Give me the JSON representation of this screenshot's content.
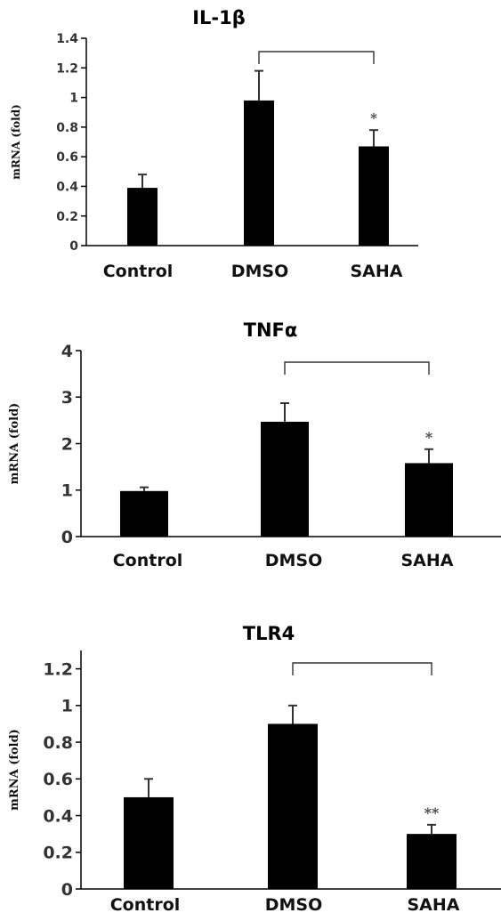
{
  "chart_data": [
    {
      "type": "bar",
      "title": "IL-1β",
      "ylabel": "mRNA  (fold)",
      "xlabel": "",
      "categories": [
        "Control",
        "DMSO",
        "SAHA"
      ],
      "values": [
        0.39,
        0.98,
        0.67
      ],
      "errors": [
        0.09,
        0.2,
        0.11
      ],
      "ylim": [
        0,
        1.4
      ],
      "yticks": [
        "0",
        "0.2",
        "0.4",
        "0.6",
        "0.8",
        "1",
        "1.2",
        "1.4"
      ],
      "comparison": {
        "from": "DMSO",
        "to": "SAHA",
        "significance": "*"
      },
      "grid": false,
      "colors": {
        "bar": "#000000"
      }
    },
    {
      "type": "bar",
      "title": "TNFα",
      "ylabel": "mRNA  (fold)",
      "xlabel": "",
      "categories": [
        "Control",
        "DMSO",
        "SAHA"
      ],
      "values": [
        0.98,
        2.47,
        1.58
      ],
      "errors": [
        0.08,
        0.4,
        0.3
      ],
      "ylim": [
        0,
        4
      ],
      "yticks": [
        "0",
        "1",
        "2",
        "3",
        "4"
      ],
      "comparison": {
        "from": "DMSO",
        "to": "SAHA",
        "significance": "*"
      },
      "grid": false,
      "colors": {
        "bar": "#000000"
      }
    },
    {
      "type": "bar",
      "title": "TLR4",
      "ylabel": "mRNA  (fold)",
      "xlabel": "",
      "categories": [
        "Control",
        "DMSO",
        "SAHA"
      ],
      "values": [
        0.5,
        0.9,
        0.3
      ],
      "errors": [
        0.1,
        0.1,
        0.05
      ],
      "ylim": [
        0,
        1.3
      ],
      "yticks": [
        "0",
        "0.2",
        "0.4",
        "0.6",
        "0.8",
        "1",
        "1.2"
      ],
      "comparison": {
        "from": "DMSO",
        "to": "SAHA",
        "significance": "**"
      },
      "grid": false,
      "colors": {
        "bar": "#000000"
      }
    }
  ]
}
